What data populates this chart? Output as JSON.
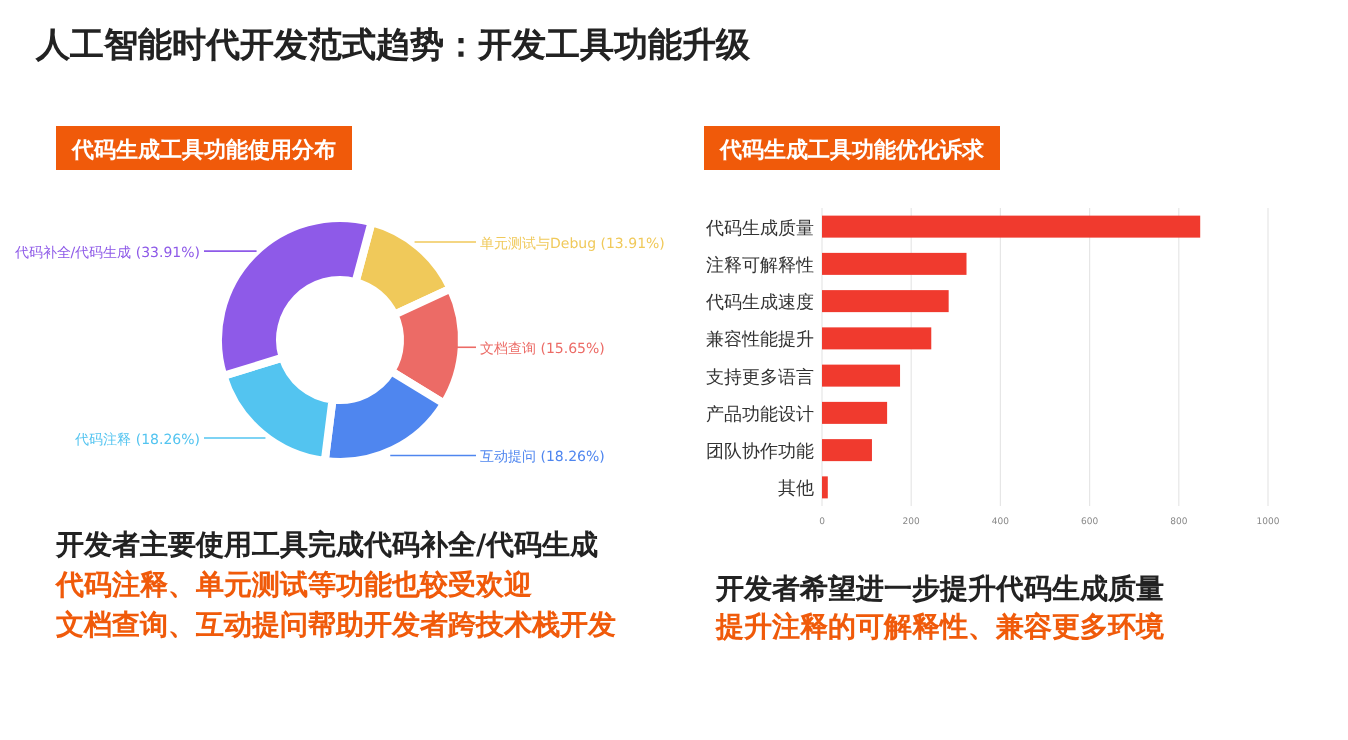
{
  "chart_data": [
    {
      "type": "donut",
      "title": "代码生成工具功能使用分布",
      "categories": [
        "单元测试与Debug",
        "文档查询",
        "互动提问",
        "代码注释",
        "代码补全/代码生成"
      ],
      "values": [
        13.91,
        15.65,
        18.26,
        18.26,
        33.91
      ],
      "colors": [
        "#f0c95a",
        "#ec6b66",
        "#4f86ef",
        "#53c4f0",
        "#8e5ae8"
      ],
      "value_labels": [
        "(13.91%)",
        "(15.65%)",
        "(18.26%)",
        "(18.26%)",
        "(33.91%)"
      ],
      "annotations": [
        "人工智能时代开发范式趋势：开发工具功能升级",
        "开发者主要使用工具完成代码补全/代码生成",
        "代码注释、单元测试等功能也较受欢迎",
        "文档查询、互动提问帮助开发者跨技术栈开发"
      ]
    },
    {
      "type": "bar",
      "orientation": "horizontal",
      "title": "代码生成工具功能优化诉求",
      "categories": [
        "代码生成质量",
        "注释可解释性",
        "代码生成速度",
        "兼容性能提升",
        "支持更多语言",
        "产品功能设计",
        "团队协作功能",
        "其他"
      ],
      "values": [
        848,
        324,
        284,
        245,
        175,
        146,
        112,
        13
      ],
      "color": "#f03a2e",
      "xlim": [
        0,
        1000
      ],
      "xticks": [
        0,
        200,
        400,
        600,
        800,
        1000
      ],
      "grid": "x",
      "annotations": [
        "开发者希望进一步提升代码生成质量",
        "提升注释的可解释性、兼容更多环境"
      ]
    }
  ]
}
